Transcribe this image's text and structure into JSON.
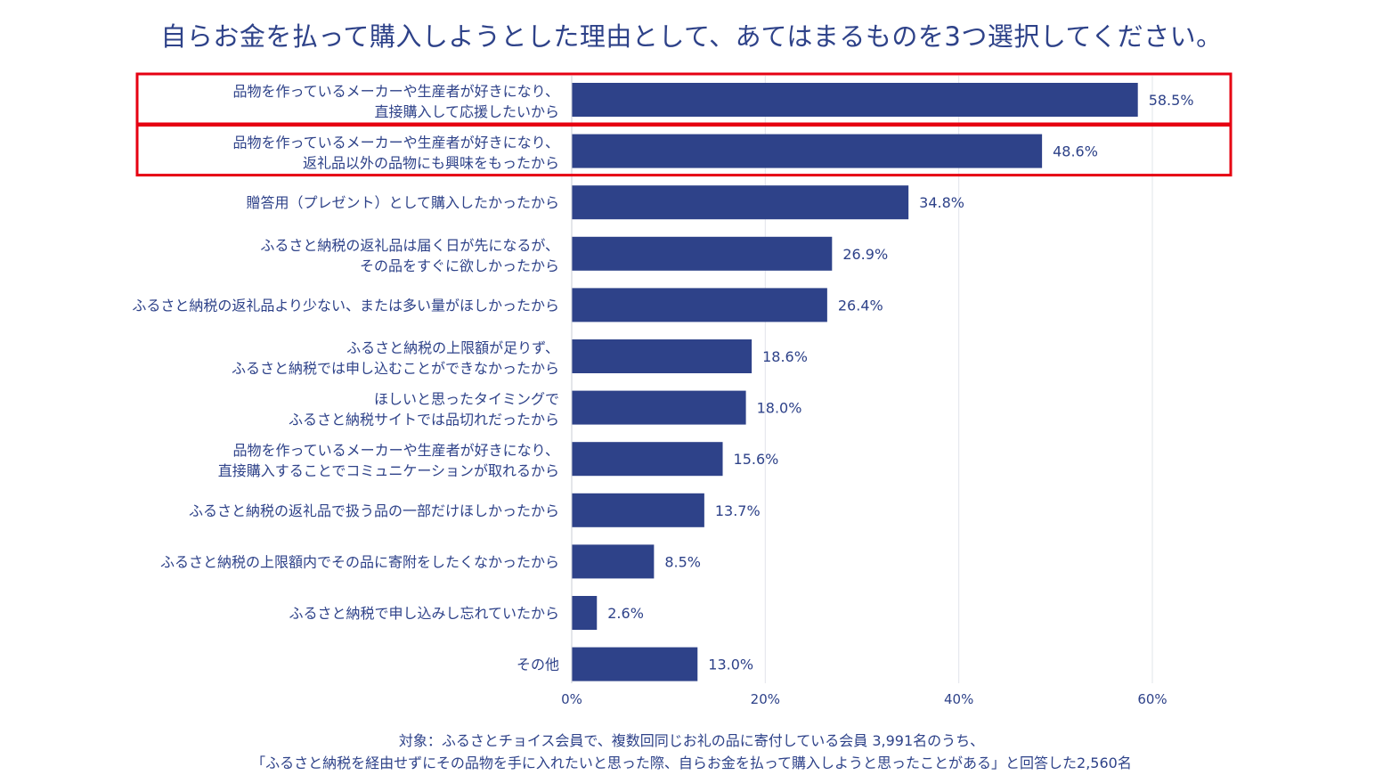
{
  "chart_data": {
    "type": "bar",
    "orientation": "horizontal",
    "title": "自らお金を払って購入しようとした理由として、あてはまるものを3つ選択してください。",
    "categories": [
      [
        "品物を作っているメーカーや生産者が好きになり、",
        "直接購入して応援したいから"
      ],
      [
        "品物を作っているメーカーや生産者が好きになり、",
        "返礼品以外の品物にも興味をもったから"
      ],
      [
        "贈答用（プレゼント）として購入したかったから"
      ],
      [
        "ふるさと納税の返礼品は届く日が先になるが、",
        "その品をすぐに欲しかったから"
      ],
      [
        "ふるさと納税の返礼品より少ない、または多い量がほしかったから"
      ],
      [
        "ふるさと納税の上限額が足りず、",
        "ふるさと納税では申し込むことができなかったから"
      ],
      [
        "ほしいと思ったタイミングで",
        "ふるさと納税サイトでは品切れだったから"
      ],
      [
        "品物を作っているメーカーや生産者が好きになり、",
        "直接購入することでコミュニケーションが取れるから"
      ],
      [
        "ふるさと納税の返礼品で扱う品の一部だけほしかったから"
      ],
      [
        "ふるさと納税の上限額内でその品に寄附をしたくなかったから"
      ],
      [
        "ふるさと納税で申し込みし忘れていたから"
      ],
      [
        "その他"
      ]
    ],
    "values": [
      58.5,
      48.6,
      34.8,
      26.9,
      26.4,
      18.6,
      18.0,
      15.6,
      13.7,
      8.5,
      2.6,
      13.0
    ],
    "value_labels": [
      "58.5%",
      "48.6%",
      "34.8%",
      "26.9%",
      "26.4%",
      "18.6%",
      "18.0%",
      "15.6%",
      "13.7%",
      "8.5%",
      "2.6%",
      "13.0%"
    ],
    "xlim": [
      0,
      60
    ],
    "xticks": [
      0,
      20,
      40,
      60
    ],
    "xtick_labels": [
      "0%",
      "20%",
      "40%",
      "60%"
    ],
    "grid": true,
    "highlighted_indices": [
      0,
      1
    ],
    "colors": {
      "bar": "#2e4289",
      "text": "#2e4289",
      "highlight": "#e60012",
      "grid": "#e2e4ea"
    }
  },
  "footnote": {
    "line1": "対象：ふるさとチョイス会員で、複数回同じお礼の品に寄付している会員 3,991名のうち、",
    "line2": "「ふるさと納税を経由せずにその品物を手に入れたいと思った際、自らお金を払って購入しようと思ったことがある」と回答した2,560名"
  }
}
